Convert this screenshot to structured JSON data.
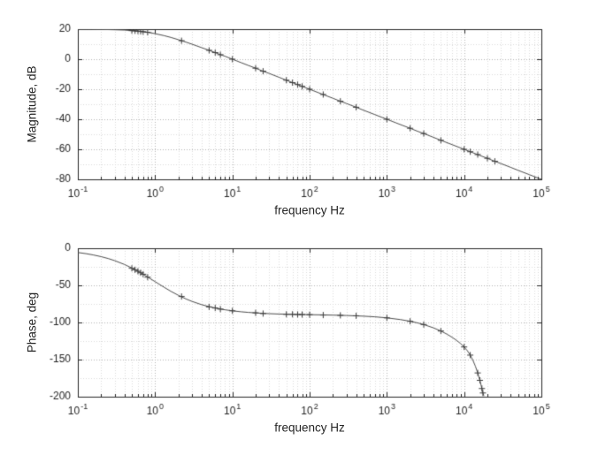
{
  "figure": {
    "background": "#ffffff",
    "axis_color": "#262626"
  },
  "chart_data": [
    {
      "type": "line",
      "title": "",
      "xlabel": "frequency Hz",
      "ylabel": "Magnitude, dB",
      "xscale": "log",
      "xlim": [
        0.1,
        100000
      ],
      "ylim": [
        -80,
        20
      ],
      "yticks": [
        20,
        0,
        -20,
        -40,
        -60,
        -80
      ],
      "minor_yticks": [
        10,
        -10,
        -30,
        -50,
        -70
      ],
      "xtick_exponents": [
        -1,
        0,
        1,
        2,
        3,
        4,
        5
      ],
      "xtick_labels": [
        "10^-1",
        "10^0",
        "10^1",
        "10^2",
        "10^3",
        "10^4",
        "10^5"
      ],
      "grid": true,
      "minor_grid": true,
      "legend": null,
      "axis_color": "#262626",
      "grid_color": "#b3b3b3",
      "minor_grid_color": "#dadada",
      "line_color": "#4d4d4d",
      "marker": "+",
      "marker_color": "#3d3d3d",
      "curve": [
        [
          0.1,
          20.0
        ],
        [
          0.15,
          19.9
        ],
        [
          0.2,
          19.8
        ],
        [
          0.3,
          19.6
        ],
        [
          0.4,
          19.4
        ],
        [
          0.5,
          19.0
        ],
        [
          0.6,
          18.7
        ],
        [
          0.7,
          18.3
        ],
        [
          0.8,
          17.9
        ],
        [
          1.0,
          17.0
        ],
        [
          1.3,
          15.7
        ],
        [
          1.6,
          14.5
        ],
        [
          2.0,
          13.0
        ],
        [
          2.5,
          11.4
        ],
        [
          3.0,
          10.0
        ],
        [
          4.0,
          7.7
        ],
        [
          5.0,
          5.9
        ],
        [
          6.0,
          4.4
        ],
        [
          7.0,
          3.0
        ],
        [
          8.0,
          2.0
        ],
        [
          10,
          0.0
        ],
        [
          13,
          -2.3
        ],
        [
          16,
          -4.1
        ],
        [
          20,
          -6.0
        ],
        [
          25,
          -8.0
        ],
        [
          30,
          -9.5
        ],
        [
          40,
          -12.0
        ],
        [
          50,
          -14.0
        ],
        [
          60,
          -15.6
        ],
        [
          80,
          -18.1
        ],
        [
          100,
          -20.0
        ],
        [
          130,
          -22.3
        ],
        [
          160,
          -24.1
        ],
        [
          200,
          -26.0
        ],
        [
          250,
          -28.0
        ],
        [
          300,
          -29.5
        ],
        [
          400,
          -32.0
        ],
        [
          500,
          -34.0
        ],
        [
          700,
          -36.9
        ],
        [
          1000,
          -40.0
        ],
        [
          1300,
          -42.3
        ],
        [
          1600,
          -44.1
        ],
        [
          2000,
          -46.0
        ],
        [
          2500,
          -48.0
        ],
        [
          3000,
          -49.5
        ],
        [
          4000,
          -52.0
        ],
        [
          5000,
          -54.0
        ],
        [
          7000,
          -56.9
        ],
        [
          10000,
          -60.0
        ],
        [
          13000,
          -62.3
        ],
        [
          16000,
          -64.1
        ],
        [
          20000,
          -66.0
        ],
        [
          25000,
          -68.0
        ],
        [
          30000,
          -69.5
        ],
        [
          40000,
          -72.0
        ],
        [
          50000,
          -74.0
        ],
        [
          70000,
          -76.9
        ],
        [
          100000,
          -80.0
        ]
      ],
      "markers": [
        [
          0.5,
          19.0
        ],
        [
          0.55,
          18.9
        ],
        [
          0.6,
          18.7
        ],
        [
          0.65,
          18.5
        ],
        [
          0.7,
          18.3
        ],
        [
          0.8,
          17.9
        ],
        [
          2.2,
          12.3
        ],
        [
          5,
          5.9
        ],
        [
          6,
          4.4
        ],
        [
          7,
          3.0
        ],
        [
          10,
          0.0
        ],
        [
          20,
          -6.0
        ],
        [
          25,
          -8.0
        ],
        [
          50,
          -14.0
        ],
        [
          60,
          -15.6
        ],
        [
          70,
          -16.9
        ],
        [
          80,
          -18.1
        ],
        [
          100,
          -20.0
        ],
        [
          150,
          -23.5
        ],
        [
          250,
          -28.0
        ],
        [
          400,
          -32.0
        ],
        [
          1000,
          -40.0
        ],
        [
          2000,
          -46.0
        ],
        [
          3000,
          -49.5
        ],
        [
          5000,
          -54.0
        ],
        [
          10000,
          -60.0
        ],
        [
          12000,
          -61.6
        ],
        [
          15000,
          -63.5
        ],
        [
          20000,
          -66.0
        ],
        [
          25000,
          -68.0
        ]
      ]
    },
    {
      "type": "line",
      "title": "",
      "xlabel": "frequency Hz",
      "ylabel": "Phase, deg",
      "xscale": "log",
      "xlim": [
        0.1,
        100000
      ],
      "ylim": [
        -200,
        0
      ],
      "yticks": [
        0,
        -50,
        -100,
        -150,
        -200
      ],
      "minor_yticks": [
        -25,
        -75,
        -125,
        -175
      ],
      "xtick_exponents": [
        -1,
        0,
        1,
        2,
        3,
        4,
        5
      ],
      "xtick_labels": [
        "10^-1",
        "10^0",
        "10^1",
        "10^2",
        "10^3",
        "10^4",
        "10^5"
      ],
      "grid": true,
      "minor_grid": true,
      "legend": null,
      "axis_color": "#262626",
      "grid_color": "#b3b3b3",
      "minor_grid_color": "#dadada",
      "line_color": "#4d4d4d",
      "marker": "+",
      "marker_color": "#3d3d3d",
      "curve": [
        [
          0.1,
          -5.7
        ],
        [
          0.13,
          -7.4
        ],
        [
          0.16,
          -9.1
        ],
        [
          0.2,
          -11.3
        ],
        [
          0.25,
          -14.0
        ],
        [
          0.3,
          -16.7
        ],
        [
          0.4,
          -21.8
        ],
        [
          0.5,
          -26.6
        ],
        [
          0.6,
          -31.0
        ],
        [
          0.7,
          -35.0
        ],
        [
          0.8,
          -38.7
        ],
        [
          1.0,
          -45.0
        ],
        [
          1.3,
          -52.4
        ],
        [
          1.6,
          -58.0
        ],
        [
          2.0,
          -63.4
        ],
        [
          2.5,
          -68.2
        ],
        [
          3.0,
          -71.6
        ],
        [
          4.0,
          -76.0
        ],
        [
          5.0,
          -78.7
        ],
        [
          6.0,
          -80.5
        ],
        [
          7.0,
          -81.9
        ],
        [
          8.0,
          -82.9
        ],
        [
          10,
          -84.3
        ],
        [
          13,
          -85.6
        ],
        [
          16,
          -86.4
        ],
        [
          20,
          -87.1
        ],
        [
          25,
          -87.7
        ],
        [
          30,
          -88.1
        ],
        [
          40,
          -88.6
        ],
        [
          50,
          -88.9
        ],
        [
          70,
          -89.2
        ],
        [
          100,
          -89.5
        ],
        [
          150,
          -89.8
        ],
        [
          200,
          -90.1
        ],
        [
          300,
          -90.6
        ],
        [
          500,
          -91.5
        ],
        [
          700,
          -92.4
        ],
        [
          1000,
          -93.8
        ],
        [
          1500,
          -96.1
        ],
        [
          2000,
          -98.4
        ],
        [
          2500,
          -100.6
        ],
        [
          3000,
          -102.8
        ],
        [
          4000,
          -107.2
        ],
        [
          5000,
          -111.5
        ],
        [
          6000,
          -115.8
        ],
        [
          7000,
          -120.0
        ],
        [
          8000,
          -124.2
        ],
        [
          9000,
          -128.4
        ],
        [
          10000,
          -133.0
        ],
        [
          11000,
          -138.0
        ],
        [
          12000,
          -144.0
        ],
        [
          13000,
          -151.0
        ],
        [
          14000,
          -159.0
        ],
        [
          15000,
          -168.0
        ],
        [
          16000,
          -178.0
        ],
        [
          17000,
          -189.0
        ],
        [
          17500,
          -195.0
        ],
        [
          18000,
          -199.0
        ]
      ],
      "markers": [
        [
          0.5,
          -27
        ],
        [
          0.55,
          -29
        ],
        [
          0.6,
          -31
        ],
        [
          0.65,
          -33
        ],
        [
          0.7,
          -35
        ],
        [
          0.8,
          -39
        ],
        [
          2.2,
          -65
        ],
        [
          5,
          -79
        ],
        [
          6,
          -80.5
        ],
        [
          7,
          -82
        ],
        [
          10,
          -84.3
        ],
        [
          20,
          -87
        ],
        [
          25,
          -88
        ],
        [
          50,
          -89
        ],
        [
          60,
          -89
        ],
        [
          70,
          -89.2
        ],
        [
          80,
          -89.3
        ],
        [
          100,
          -89.5
        ],
        [
          150,
          -90
        ],
        [
          250,
          -90.4
        ],
        [
          400,
          -91
        ],
        [
          1000,
          -93.8
        ],
        [
          2000,
          -98.4
        ],
        [
          3000,
          -102.8
        ],
        [
          5000,
          -111.5
        ],
        [
          10000,
          -133
        ],
        [
          12000,
          -144
        ],
        [
          15000,
          -168
        ],
        [
          16000,
          -178
        ],
        [
          17000,
          -189
        ],
        [
          17500,
          -195
        ]
      ]
    }
  ]
}
